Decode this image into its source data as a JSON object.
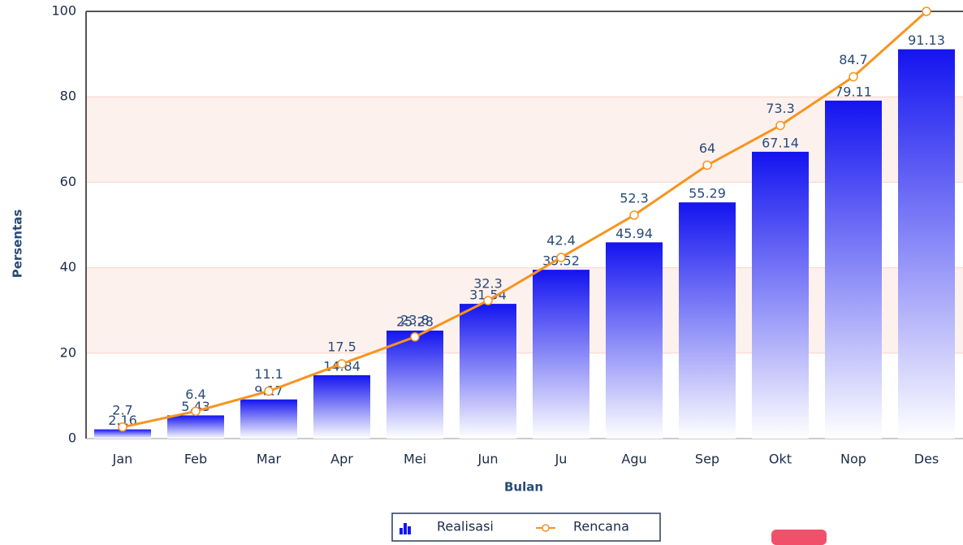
{
  "chart_data": {
    "type": "bar",
    "categories": [
      "Jan",
      "Feb",
      "Mar",
      "Apr",
      "Mei",
      "Jun",
      "Ju",
      "Agu",
      "Sep",
      "Okt",
      "Nop",
      "Des"
    ],
    "series": [
      {
        "name": "Realisasi",
        "type": "bar",
        "color": "#1414f0",
        "values": [
          2.16,
          5.43,
          9.17,
          14.84,
          25.28,
          31.54,
          39.52,
          45.94,
          55.29,
          67.14,
          79.11,
          91.13
        ]
      },
      {
        "name": "Rencana",
        "type": "line",
        "color": "#f7941d",
        "values": [
          2.7,
          6.4,
          11.1,
          17.5,
          23.8,
          32.3,
          42.4,
          52.3,
          64,
          73.3,
          84.7,
          100
        ]
      }
    ],
    "xlabel": "Bulan",
    "ylabel": "Persentas",
    "ylim": [
      0,
      100
    ],
    "yticks": [
      0,
      20,
      40,
      60,
      80,
      100
    ],
    "grid": true,
    "legend": "bottom"
  }
}
